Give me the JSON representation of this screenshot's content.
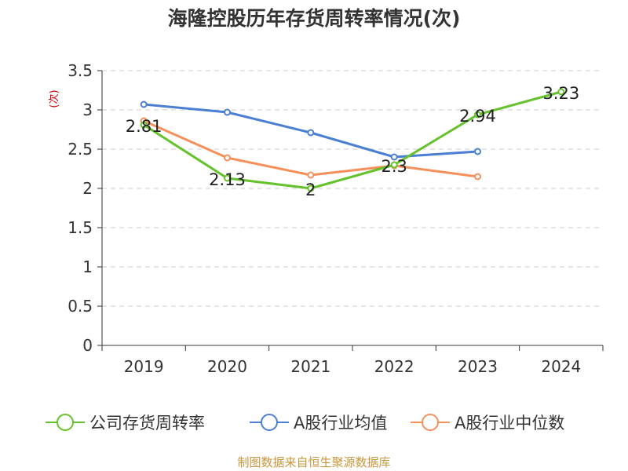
{
  "title": "海隆控股历年存货周转率情况(次)",
  "source": "制图数据来自恒生聚源数据库",
  "chart_data": {
    "type": "line",
    "title": "海隆控股历年存货周转率情况(次)",
    "ylabel": "(次)",
    "xlabel": "",
    "categories": [
      "2019",
      "2020",
      "2021",
      "2022",
      "2023",
      "2024"
    ],
    "ylim": [
      0,
      3.5
    ],
    "yticks": [
      "0",
      "0.5",
      "1",
      "1.5",
      "2",
      "2.5",
      "3",
      "3.5"
    ],
    "grid": true,
    "legend_position": "bottom",
    "series": [
      {
        "name": "公司存货周转率",
        "color": "#66c22c",
        "values": [
          2.81,
          2.13,
          2,
          2.3,
          2.94,
          3.23
        ],
        "labels": [
          "2.81",
          "2.13",
          "2",
          "2.3",
          "2.94",
          "3.23"
        ]
      },
      {
        "name": "A股行业均值",
        "color": "#4a7fd4",
        "values": [
          3.07,
          2.97,
          2.71,
          2.4,
          2.47,
          null
        ]
      },
      {
        "name": "A股行业中位数",
        "color": "#f5905a",
        "values": [
          2.86,
          2.39,
          2.17,
          2.29,
          2.15,
          null
        ]
      }
    ]
  }
}
